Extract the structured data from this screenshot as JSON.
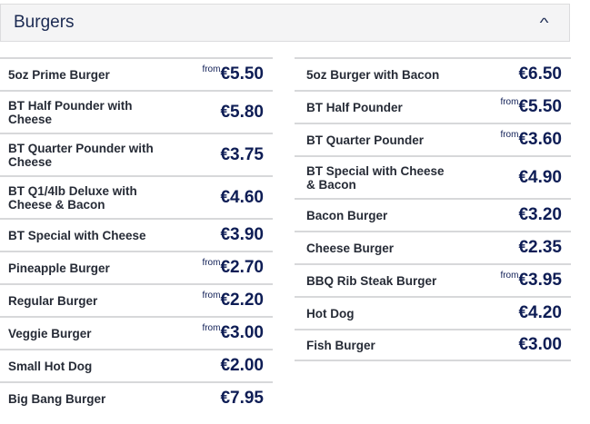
{
  "section": {
    "title": "Burgers",
    "expanded": true,
    "toggle_icon": "chevron-up-icon"
  },
  "left": [
    {
      "name": "5oz Prime Burger",
      "from": "from",
      "price": "€5.50"
    },
    {
      "name": "BT Half Pounder with Cheese",
      "from": "",
      "price": "€5.80"
    },
    {
      "name": "BT Quarter Pounder with Cheese",
      "from": "",
      "price": "€3.75"
    },
    {
      "name": "BT Q1/4lb Deluxe with Cheese & Bacon",
      "from": "",
      "price": "€4.60"
    },
    {
      "name": "BT Special with Cheese",
      "from": "",
      "price": "€3.90"
    },
    {
      "name": "Pineapple Burger",
      "from": "from",
      "price": "€2.70"
    },
    {
      "name": "Regular Burger",
      "from": "from",
      "price": "€2.20"
    },
    {
      "name": "Veggie Burger",
      "from": "from",
      "price": "€3.00"
    },
    {
      "name": "Small Hot Dog",
      "from": "",
      "price": "€2.00"
    },
    {
      "name": "Big Bang Burger",
      "from": "",
      "price": "€7.95"
    }
  ],
  "right": [
    {
      "name": "5oz Burger with Bacon",
      "from": "",
      "price": "€6.50"
    },
    {
      "name": "BT Half Pounder",
      "from": "from",
      "price": "€5.50"
    },
    {
      "name": "BT Quarter Pounder",
      "from": "from",
      "price": "€3.60"
    },
    {
      "name": "BT Special with Cheese & Bacon",
      "from": "",
      "price": "€4.90"
    },
    {
      "name": "Bacon Burger",
      "from": "",
      "price": "€3.20"
    },
    {
      "name": "Cheese Burger",
      "from": "",
      "price": "€2.35"
    },
    {
      "name": "BBQ Rib Steak Burger",
      "from": "from",
      "price": "€3.95"
    },
    {
      "name": "Hot Dog",
      "from": "",
      "price": "€4.20"
    },
    {
      "name": "Fish Burger",
      "from": "",
      "price": "€3.00"
    }
  ]
}
